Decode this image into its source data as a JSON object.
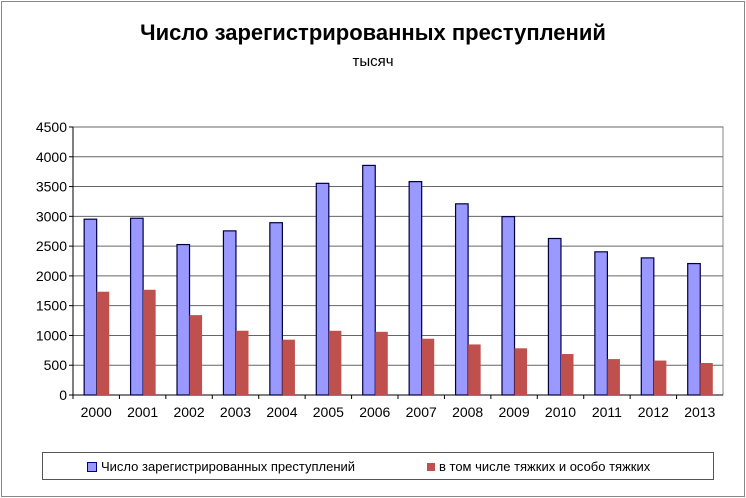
{
  "chart_data": {
    "type": "bar",
    "title": "Число зарегистрированных преступлений",
    "subtitle": "тысяч",
    "categories": [
      "2000",
      "2001",
      "2002",
      "2003",
      "2004",
      "2005",
      "2006",
      "2007",
      "2008",
      "2009",
      "2010",
      "2011",
      "2012",
      "2013"
    ],
    "series": [
      {
        "name": "Число зарегистрированных преступлений",
        "color": "#9999ff",
        "values": [
          2952,
          2968,
          2526,
          2756,
          2893,
          3554,
          3855,
          3583,
          3210,
          2995,
          2628,
          2404,
          2302,
          2207
        ]
      },
      {
        "name": "в том числе тяжких и особо тяжких",
        "color": "#c0504d",
        "values": [
          1734,
          1767,
          1341,
          1079,
          929,
          1078,
          1061,
          945,
          849,
          784,
          688,
          603,
          578,
          537
        ]
      }
    ],
    "ylim": [
      0,
      4500
    ],
    "yticks": [
      "0",
      "500",
      "1000",
      "1500",
      "2000",
      "2500",
      "3000",
      "3500",
      "4000",
      "4500"
    ],
    "grid": true,
    "legend": "bottom"
  }
}
